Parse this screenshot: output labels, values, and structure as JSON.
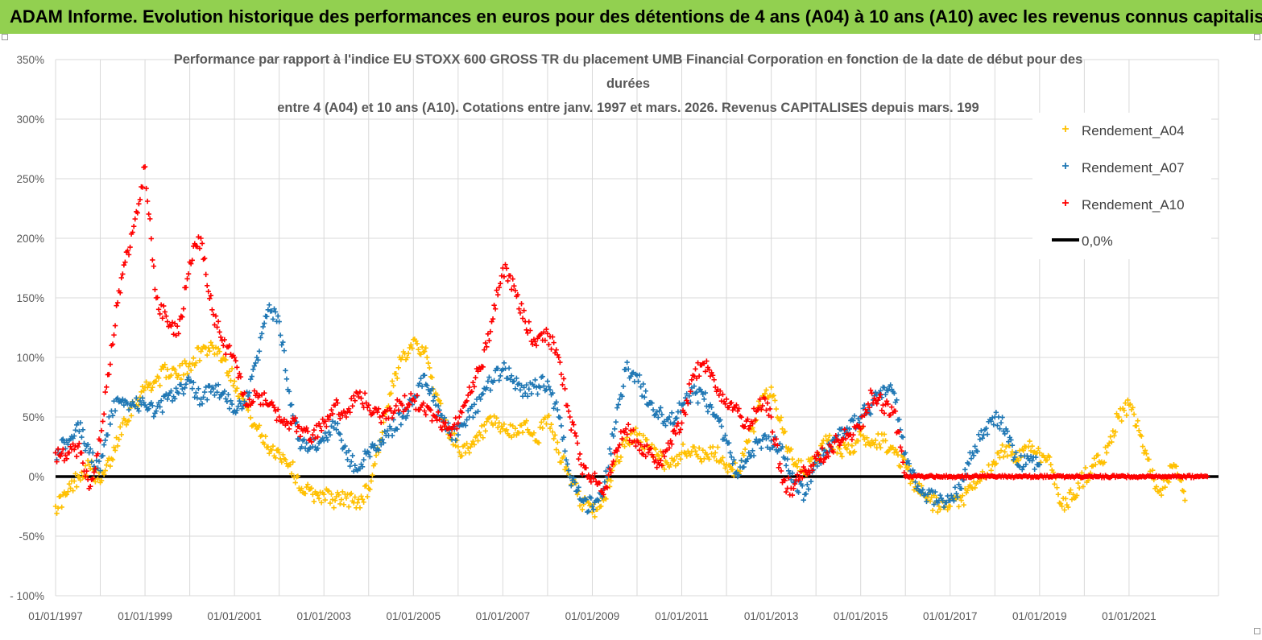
{
  "banner": {
    "title": "ADAM Informe. Evolution historique des performances en euros pour des détentions de 4 ans (A04) à 10 ans (A10) avec les revenus connus capitalisés"
  },
  "colors": {
    "banner_bg": "#92d050",
    "a04": "#ffc000",
    "a07": "#1f77b4",
    "a10": "#ff0000",
    "zero": "#000000",
    "grid": "#d9d9d9"
  },
  "chart_data": {
    "type": "scatter",
    "title_lines": [
      "Performance par rapport à l'indice EU STOXX 600 GROSS TR  du placement UMB Financial Corporation en fonction de la date de début pour des",
      "durées",
      "entre 4 (A04) et 10 ans (A10). Cotations entre janv. 1997 et mars. 2026. Revenus CAPITALISES depuis mars. 199"
    ],
    "x_unit": "year",
    "xlim": [
      1997.0,
      2023.0
    ],
    "ylim": [
      -100,
      350
    ],
    "y_ticks": [
      350,
      300,
      250,
      200,
      150,
      100,
      50,
      0,
      -50,
      -100
    ],
    "y_tick_labels": [
      "350%",
      "300%",
      "250%",
      "200%",
      "150%",
      "100%",
      "50%",
      "0%",
      "-50%",
      "- 100%"
    ],
    "x_ticks": [
      1997,
      1999,
      2001,
      2003,
      2005,
      2007,
      2009,
      2011,
      2013,
      2015,
      2017,
      2019,
      2021
    ],
    "x_tick_labels": [
      "01/01/1997",
      "01/01/1999",
      "01/01/2001",
      "01/01/2003",
      "01/01/2005",
      "01/01/2007",
      "01/01/2009",
      "01/01/2011",
      "01/01/2013",
      "01/01/2015",
      "01/01/2017",
      "01/01/2019",
      "01/01/2021"
    ],
    "legend_position": "top-right",
    "legend": [
      "Rendement_A04",
      "Rendement_A07",
      "Rendement_A10",
      "0,0%"
    ],
    "series": [
      {
        "name": "Rendement_A04",
        "marker": "+",
        "x": [
          1997.0,
          1997.25,
          1997.5,
          1997.75,
          1998.0,
          1998.25,
          1998.5,
          1998.75,
          1999.0,
          1999.25,
          1999.5,
          1999.75,
          2000.0,
          2000.25,
          2000.5,
          2000.75,
          2001.0,
          2001.25,
          2001.5,
          2001.75,
          2002.0,
          2002.25,
          2002.5,
          2002.75,
          2003.0,
          2003.25,
          2003.5,
          2003.75,
          2004.0,
          2004.25,
          2004.5,
          2004.75,
          2005.0,
          2005.25,
          2005.5,
          2005.75,
          2006.0,
          2006.25,
          2006.5,
          2006.75,
          2007.0,
          2007.25,
          2007.5,
          2007.75,
          2008.0,
          2008.25,
          2008.5,
          2008.75,
          2009.0,
          2009.25,
          2009.5,
          2009.75,
          2010.0,
          2010.25,
          2010.5,
          2010.75,
          2011.0,
          2011.25,
          2011.5,
          2011.75,
          2012.0,
          2012.25,
          2012.5,
          2012.75,
          2013.0,
          2013.25,
          2013.5,
          2013.75,
          2014.0,
          2014.25,
          2014.5,
          2014.75,
          2015.0,
          2015.25,
          2015.5,
          2015.75,
          2016.0,
          2016.25,
          2016.5,
          2016.75,
          2017.0,
          2017.25,
          2017.5,
          2017.75,
          2018.0,
          2018.25,
          2018.5,
          2018.75,
          2019.0,
          2019.25,
          2019.5,
          2019.75,
          2020.0,
          2020.25,
          2020.5,
          2020.75,
          2021.0,
          2021.25,
          2021.5,
          2021.75,
          2022.0,
          2022.25
        ],
        "y": [
          -25,
          -15,
          0,
          10,
          -5,
          15,
          45,
          60,
          75,
          80,
          90,
          85,
          95,
          105,
          110,
          100,
          80,
          60,
          40,
          25,
          20,
          10,
          -10,
          -15,
          -15,
          -20,
          -18,
          -22,
          -10,
          30,
          70,
          100,
          115,
          105,
          70,
          40,
          25,
          20,
          35,
          45,
          40,
          35,
          45,
          30,
          50,
          20,
          0,
          -20,
          -30,
          -20,
          10,
          30,
          35,
          25,
          15,
          10,
          20,
          25,
          15,
          20,
          10,
          5,
          30,
          60,
          75,
          40,
          10,
          5,
          15,
          30,
          25,
          20,
          35,
          30,
          30,
          20,
          10,
          -10,
          -20,
          -25,
          -25,
          -20,
          -10,
          0,
          10,
          25,
          15,
          25,
          20,
          10,
          -25,
          -15,
          0,
          10,
          20,
          50,
          60,
          35,
          0,
          -10,
          10,
          -20
        ]
      },
      {
        "name": "Rendement_A07",
        "marker": "+",
        "x": [
          1997.0,
          1997.25,
          1997.5,
          1997.75,
          1998.0,
          1998.25,
          1998.5,
          1998.75,
          1999.0,
          1999.25,
          1999.5,
          1999.75,
          2000.0,
          2000.25,
          2000.5,
          2000.75,
          2001.0,
          2001.25,
          2001.5,
          2001.75,
          2002.0,
          2002.25,
          2002.5,
          2002.75,
          2003.0,
          2003.25,
          2003.5,
          2003.75,
          2004.0,
          2004.25,
          2004.5,
          2004.75,
          2005.0,
          2005.25,
          2005.5,
          2005.75,
          2006.0,
          2006.25,
          2006.5,
          2006.75,
          2007.0,
          2007.25,
          2007.5,
          2007.75,
          2008.0,
          2008.25,
          2008.5,
          2008.75,
          2009.0,
          2009.25,
          2009.5,
          2009.75,
          2010.0,
          2010.25,
          2010.5,
          2010.75,
          2011.0,
          2011.25,
          2011.5,
          2011.75,
          2012.0,
          2012.25,
          2012.5,
          2012.75,
          2013.0,
          2013.25,
          2013.5,
          2013.75,
          2014.0,
          2014.25,
          2014.5,
          2014.75,
          2015.0,
          2015.25,
          2015.5,
          2015.75,
          2016.0,
          2016.25,
          2016.5,
          2016.75,
          2017.0,
          2017.25,
          2017.5,
          2017.75,
          2018.0,
          2018.25,
          2018.5,
          2018.75,
          2019.0
        ],
        "y": [
          20,
          30,
          45,
          20,
          5,
          55,
          65,
          60,
          60,
          55,
          65,
          70,
          80,
          65,
          75,
          70,
          55,
          60,
          100,
          140,
          130,
          60,
          25,
          25,
          30,
          45,
          20,
          5,
          20,
          30,
          40,
          50,
          65,
          85,
          60,
          40,
          35,
          50,
          65,
          80,
          90,
          80,
          70,
          75,
          80,
          50,
          0,
          -20,
          -25,
          -10,
          40,
          90,
          85,
          60,
          55,
          45,
          60,
          70,
          65,
          50,
          30,
          0,
          20,
          30,
          30,
          25,
          -5,
          -15,
          15,
          20,
          35,
          40,
          50,
          60,
          75,
          70,
          20,
          -10,
          -15,
          -20,
          -20,
          -10,
          20,
          35,
          50,
          40,
          10,
          15,
          10
        ]
      },
      {
        "name": "Rendement_A10",
        "marker": "+",
        "x": [
          1997.0,
          1997.25,
          1997.5,
          1997.75,
          1998.0,
          1998.25,
          1998.5,
          1998.75,
          1999.0,
          1999.25,
          1999.5,
          1999.75,
          2000.0,
          2000.25,
          2000.5,
          2000.75,
          2001.0,
          2001.25,
          2001.5,
          2001.75,
          2002.0,
          2002.25,
          2002.5,
          2002.75,
          2003.0,
          2003.25,
          2003.5,
          2003.75,
          2004.0,
          2004.25,
          2004.5,
          2004.75,
          2005.0,
          2005.25,
          2005.5,
          2005.75,
          2006.0,
          2006.25,
          2006.5,
          2006.75,
          2007.0,
          2007.25,
          2007.5,
          2007.75,
          2008.0,
          2008.25,
          2008.5,
          2008.75,
          2009.0,
          2009.25,
          2009.5,
          2009.75,
          2010.0,
          2010.25,
          2010.5,
          2010.75,
          2011.0,
          2011.25,
          2011.5,
          2011.75,
          2012.0,
          2012.25,
          2012.5,
          2012.75,
          2013.0,
          2013.25,
          2013.5,
          2013.75,
          2014.0,
          2014.25,
          2014.5,
          2014.75,
          2015.0,
          2015.25,
          2015.5,
          2015.75,
          2016.0,
          2016.25,
          2016.5,
          2016.75,
          2017.0,
          2017.25,
          2017.5,
          2017.75,
          2018.0,
          2018.25,
          2018.5,
          2018.75,
          2019.0,
          2019.25,
          2019.5,
          2019.75,
          2020.0,
          2020.25,
          2020.5,
          2020.75,
          2021.0,
          2021.25,
          2021.5,
          2021.75,
          2022.0,
          2022.25,
          2022.5,
          2022.75
        ],
        "y": [
          20,
          15,
          25,
          -10,
          30,
          110,
          170,
          210,
          260,
          150,
          130,
          120,
          180,
          200,
          140,
          110,
          100,
          60,
          70,
          60,
          50,
          45,
          40,
          35,
          45,
          60,
          50,
          70,
          60,
          50,
          55,
          60,
          65,
          55,
          50,
          40,
          45,
          75,
          90,
          130,
          175,
          160,
          130,
          110,
          120,
          100,
          50,
          10,
          0,
          -15,
          20,
          40,
          30,
          20,
          10,
          30,
          45,
          85,
          95,
          75,
          65,
          55,
          40,
          65,
          50,
          -5,
          -10,
          5,
          15,
          20,
          30,
          35,
          40,
          70,
          60,
          55,
          0,
          0,
          0,
          0,
          0,
          0,
          0,
          0,
          0,
          0,
          0,
          0,
          0,
          0,
          0,
          0,
          0,
          0,
          0,
          0,
          0,
          0,
          0,
          0,
          0,
          0,
          0,
          0
        ]
      }
    ],
    "reference_line": {
      "name": "0,0%",
      "y": 0,
      "x": [
        1997.0,
        2023.0
      ]
    }
  }
}
